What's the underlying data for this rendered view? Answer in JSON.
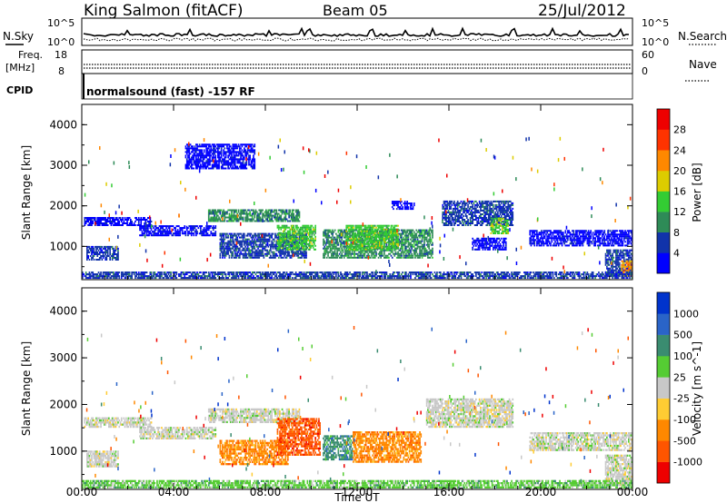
{
  "header": {
    "station": "King Salmon (fitACF)",
    "beam": "Beam 05",
    "date": "25/Jul/2012"
  },
  "top_panels": {
    "nsky_label": "N.Sky",
    "nsky_ticks": [
      "10^5",
      "10^0"
    ],
    "nsearch_label": "N.Search",
    "nsearch_ticks": [
      "10^5",
      "10^0"
    ],
    "freq_label": "Freq.",
    "freq_unit": "[MHz]",
    "freq_ticks": [
      "18",
      "8"
    ],
    "nave_label": "Nave",
    "nave_ticks": [
      "60",
      "0"
    ],
    "cpid_label": "CPID",
    "cpid_value": "normalsound (fast) -157 RF"
  },
  "chart_data": [
    {
      "type": "heatmap",
      "quantity": "Power",
      "ylabel": "Slant Range [km]",
      "xlabel": "Time UT",
      "xlim": [
        0,
        24
      ],
      "ylim": [
        180,
        4500
      ],
      "x_ticks": [
        "00:00",
        "04:00",
        "08:00",
        "12:00",
        "16:00",
        "20:00",
        "00:00"
      ],
      "y_ticks": [
        "1000",
        "2000",
        "3000",
        "4000"
      ],
      "colorbar_label": "Power [dB]",
      "colorbar_ticks": [
        "4",
        "8",
        "12",
        "16",
        "20",
        "24",
        "28"
      ],
      "colorbar_colors": [
        "#0000ff",
        "#1133aa",
        "#2e8b57",
        "#33cc33",
        "#ddcc00",
        "#ff8800",
        "#ff3300",
        "#ee0000"
      ],
      "regions": [
        {
          "t0": 0.2,
          "t1": 1.6,
          "r0": 650,
          "r1": 1000,
          "level": 1
        },
        {
          "t0": 0.1,
          "t1": 3.0,
          "r0": 1500,
          "r1": 1700,
          "level": 0
        },
        {
          "t0": 2.5,
          "t1": 5.8,
          "r0": 1250,
          "r1": 1500,
          "level": 0
        },
        {
          "t0": 5.5,
          "t1": 9.5,
          "r0": 1600,
          "r1": 1900,
          "level": 2
        },
        {
          "t0": 6.0,
          "t1": 9.8,
          "r0": 700,
          "r1": 1300,
          "level": 1
        },
        {
          "t0": 8.5,
          "t1": 10.2,
          "r0": 900,
          "r1": 1500,
          "level": 3
        },
        {
          "t0": 10.5,
          "t1": 15.3,
          "r0": 700,
          "r1": 1400,
          "level": 2
        },
        {
          "t0": 11.5,
          "t1": 13.8,
          "r0": 900,
          "r1": 1500,
          "level": 3
        },
        {
          "t0": 13.5,
          "t1": 14.5,
          "r0": 1900,
          "r1": 2100,
          "level": 0
        },
        {
          "t0": 15.7,
          "t1": 18.8,
          "r0": 1500,
          "r1": 2100,
          "level": 1
        },
        {
          "t0": 17.8,
          "t1": 18.6,
          "r0": 1300,
          "r1": 1700,
          "level": 3
        },
        {
          "t0": 17.0,
          "t1": 18.5,
          "r0": 900,
          "r1": 1200,
          "level": 0
        },
        {
          "t0": 19.5,
          "t1": 24.0,
          "r0": 1000,
          "r1": 1400,
          "level": 0
        },
        {
          "t0": 22.8,
          "t1": 24.0,
          "r0": 250,
          "r1": 900,
          "level": 1
        },
        {
          "t0": 23.5,
          "t1": 24.0,
          "r0": 250,
          "r1": 650,
          "level": 5
        },
        {
          "t0": 4.5,
          "t1": 7.5,
          "r0": 2900,
          "r1": 3500,
          "level": 0
        },
        {
          "t0": 0.0,
          "t1": 24.0,
          "r0": 200,
          "r1": 350,
          "level": 1
        }
      ]
    },
    {
      "type": "heatmap",
      "quantity": "Velocity",
      "ylabel": "Slant Range [km]",
      "xlabel": "Time UT",
      "xlim": [
        0,
        24
      ],
      "ylim": [
        180,
        4500
      ],
      "x_ticks": [
        "00:00",
        "04:00",
        "08:00",
        "12:00",
        "16:00",
        "20:00",
        "00:00"
      ],
      "y_ticks": [
        "1000",
        "2000",
        "3000",
        "4000"
      ],
      "colorbar_label": "Velocity [m s^-1]",
      "colorbar_ticks": [
        "1000",
        "500",
        "100",
        "25",
        "-25",
        "-100",
        "-500",
        "-1000"
      ],
      "colorbar_colors": [
        "#0033cc",
        "#2a64c8",
        "#3a8c70",
        "#55cc33",
        "#c8c8c8",
        "#ffcc33",
        "#ff8800",
        "#ff5500",
        "#ee0000"
      ],
      "regions": [
        {
          "t0": 0.2,
          "t1": 1.6,
          "r0": 650,
          "r1": 1000,
          "level": 4
        },
        {
          "t0": 0.1,
          "t1": 3.0,
          "r0": 1500,
          "r1": 1700,
          "level": 4
        },
        {
          "t0": 2.5,
          "t1": 5.8,
          "r0": 1250,
          "r1": 1500,
          "level": 4
        },
        {
          "t0": 5.5,
          "t1": 9.5,
          "r0": 1600,
          "r1": 1900,
          "level": 4
        },
        {
          "t0": 6.0,
          "t1": 9.0,
          "r0": 700,
          "r1": 1200,
          "level": 6
        },
        {
          "t0": 8.5,
          "t1": 10.4,
          "r0": 900,
          "r1": 1700,
          "level": 7
        },
        {
          "t0": 10.5,
          "t1": 11.8,
          "r0": 800,
          "r1": 1300,
          "level": 2
        },
        {
          "t0": 11.8,
          "t1": 14.8,
          "r0": 750,
          "r1": 1400,
          "level": 6
        },
        {
          "t0": 15.0,
          "t1": 18.8,
          "r0": 1500,
          "r1": 2100,
          "level": 4
        },
        {
          "t0": 19.5,
          "t1": 24.0,
          "r0": 1000,
          "r1": 1400,
          "level": 4
        },
        {
          "t0": 22.8,
          "t1": 24.0,
          "r0": 250,
          "r1": 900,
          "level": 4
        },
        {
          "t0": 0.0,
          "t1": 24.0,
          "r0": 200,
          "r1": 350,
          "level": 3
        }
      ]
    }
  ]
}
